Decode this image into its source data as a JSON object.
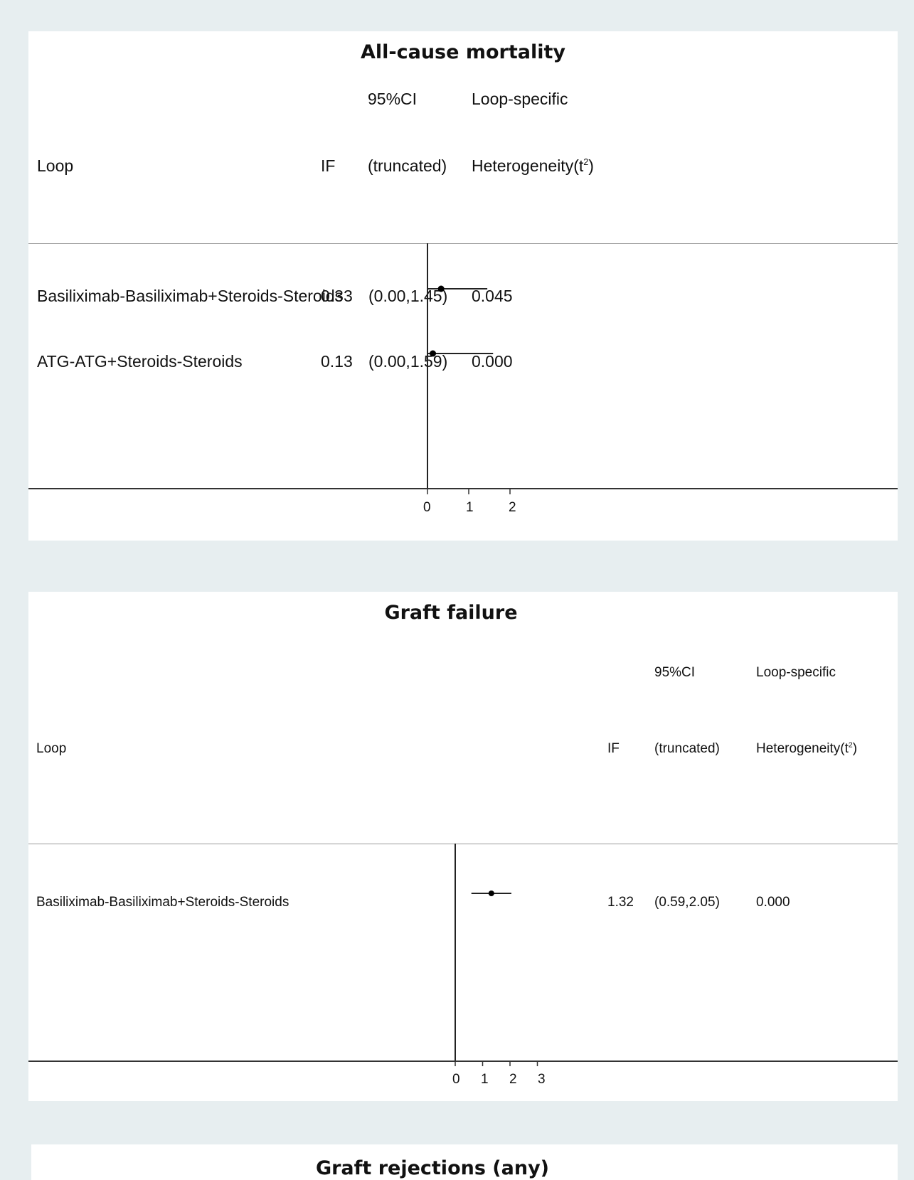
{
  "chart_data": [
    {
      "type": "forest",
      "title": "All-cause mortality",
      "columns": {
        "loop": "Loop",
        "if": "IF",
        "ci_top": "95%CI",
        "ci_bottom": "(truncated)",
        "het_top": "Loop-specific",
        "het_bottom": "Heterogeneity(t",
        "het_sup": "2",
        "het_close": ")"
      },
      "rows": [
        {
          "loop": "Basiliximab-Basiliximab+Steroids-Steroids",
          "if_value": 0.33,
          "ci_low": 0.0,
          "ci_high": 1.45,
          "if_text": "0.33",
          "ci_text": "(0.00,1.45)",
          "het_text": "0.045"
        },
        {
          "loop": "ATG-ATG+Steroids-Steroids",
          "if_value": 0.13,
          "ci_low": 0.0,
          "ci_high": 1.59,
          "if_text": "0.13",
          "ci_text": "(0.00,1.59)",
          "het_text": "0.000"
        }
      ],
      "xticks": [
        "0",
        "1",
        "2"
      ],
      "xlim": [
        0,
        2
      ]
    },
    {
      "type": "forest",
      "title": "Graft failure",
      "columns": {
        "loop": "Loop",
        "if": "IF",
        "ci_top": "95%CI",
        "ci_bottom": "(truncated)",
        "het_top": "Loop-specific",
        "het_bottom": "Heterogeneity(t",
        "het_sup": "2",
        "het_close": ")"
      },
      "rows": [
        {
          "loop": "Basiliximab-Basiliximab+Steroids-Steroids",
          "if_value": 1.32,
          "ci_low": 0.59,
          "ci_high": 2.05,
          "if_text": "1.32",
          "ci_text": "(0.59,2.05)",
          "het_text": "0.000"
        }
      ],
      "xticks": [
        "0",
        "1",
        "2",
        "3"
      ],
      "xlim": [
        0,
        3
      ]
    },
    {
      "type": "forest",
      "title": "Graft rejections (any)"
    }
  ]
}
